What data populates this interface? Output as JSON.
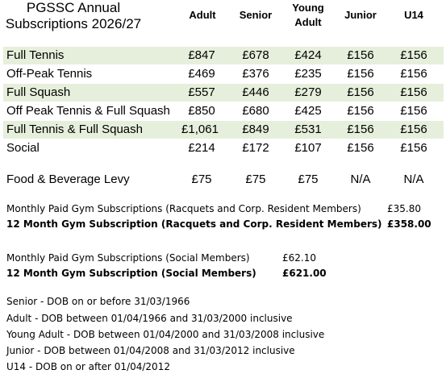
{
  "title": {
    "line1": "PGSSC Annual",
    "line2": "Subscriptions 2026/27"
  },
  "columns": {
    "adult": "Adult",
    "senior": "Senior",
    "young_line1": "Young",
    "young_line2": "Adult",
    "junior": "Junior",
    "u14": "U14"
  },
  "rows": [
    {
      "label": "Full Tennis",
      "adult": "£847",
      "senior": "£678",
      "young": "£424",
      "junior": "£156",
      "u14": "£156"
    },
    {
      "label": "Off-Peak Tennis",
      "adult": "£469",
      "senior": "£376",
      "young": "£235",
      "junior": "£156",
      "u14": "£156"
    },
    {
      "label": "Full Squash",
      "adult": "£557",
      "senior": "£446",
      "young": "£279",
      "junior": "£156",
      "u14": "£156"
    },
    {
      "label": "Off Peak Tennis & Full Squash",
      "adult": "£850",
      "senior": "£680",
      "young": "£425",
      "junior": "£156",
      "u14": "£156"
    },
    {
      "label": "Full Tennis & Full Squash",
      "adult": "£1,061",
      "senior": "£849",
      "young": "£531",
      "junior": "£156",
      "u14": "£156"
    },
    {
      "label": "Social",
      "adult": "£214",
      "senior": "£172",
      "young": "£107",
      "junior": "£156",
      "u14": "£156"
    },
    {
      "label": "Food & Beverage Levy",
      "adult": "£75",
      "senior": "£75",
      "young": "£75",
      "junior": "N/A",
      "u14": "N/A"
    }
  ],
  "gym": {
    "racquets_monthly_label": "Monthly Paid Gym Subscriptions (Racquets and Corp. Resident Members)",
    "racquets_monthly_value": "£35.80",
    "racquets_annual_label": "12 Month Gym Subscription (Racquets and Corp. Resident Members)",
    "racquets_annual_value": "£358.00",
    "social_monthly_label": "Monthly Paid Gym Subscriptions (Social Members)",
    "social_monthly_value": "£62.10",
    "social_annual_label": "12 Month Gym Subscription (Social Members)",
    "social_annual_value": "£621.00"
  },
  "definitions": [
    "Senior - DOB on or before 31/03/1966",
    "Adult - DOB between 01/04/1966 and 31/03/2000 inclusive",
    "Young Adult - DOB between 01/04/2000 and 31/03/2008 inclusive",
    "Junior - DOB between 01/04/2008 and 31/03/2012 inclusive",
    "U14 - DOB on or after 01/04/2012"
  ],
  "colors": {
    "band": "#e6efdb",
    "text": "#000000"
  }
}
